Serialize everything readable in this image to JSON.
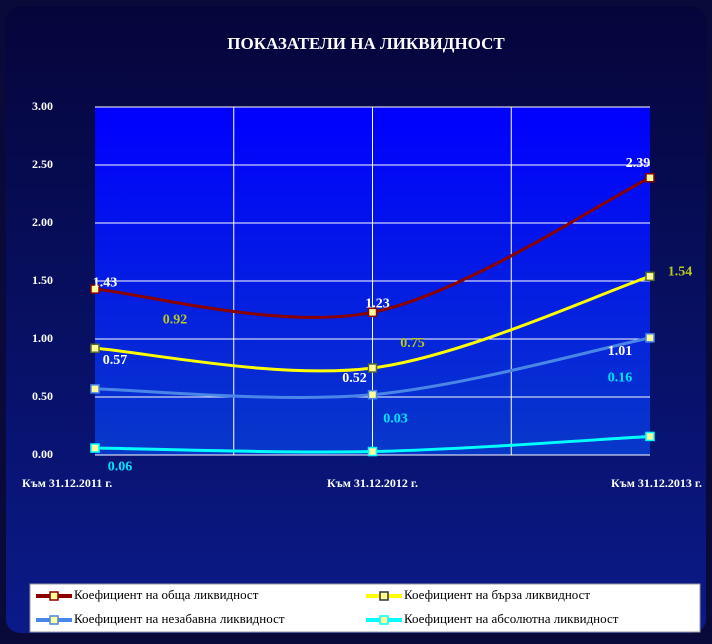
{
  "chart_data": {
    "type": "line",
    "title": "ПОКАЗАТЕЛИ НА ЛИКВИДНОСТ",
    "categories": [
      "Към 31.12.2011 г.",
      "Към 31.12.2012 г.",
      "Към 31.12.2013 г."
    ],
    "series": [
      {
        "name": "Коефициент на обща ликвидност",
        "color": "#8b0000",
        "label_color": "#ffffff",
        "values": [
          1.43,
          1.23,
          2.39
        ]
      },
      {
        "name": "Коефициент на бърза ликвидност",
        "color": "#ffff00",
        "label_color": "#b8c820",
        "values": [
          0.92,
          0.75,
          1.54
        ]
      },
      {
        "name": "Коефициент на незабавна ликвидност",
        "color": "#4a86e8",
        "label_color": "#ffffff",
        "values": [
          0.57,
          0.52,
          1.01
        ]
      },
      {
        "name": "Коефициент на абсолютна ликвидност",
        "color": "#00ffff",
        "label_color": "#00e5ff",
        "values": [
          0.06,
          0.03,
          0.16
        ]
      }
    ],
    "ylim": [
      0,
      3
    ],
    "yticks": [
      {
        "value": 0,
        "label": "0.00"
      },
      {
        "value": 0.5,
        "label": "0.50"
      },
      {
        "value": 1,
        "label": "1.00"
      },
      {
        "value": 1.5,
        "label": "1.50"
      },
      {
        "value": 2,
        "label": "2.00"
      },
      {
        "value": 2.5,
        "label": "2.50"
      },
      {
        "value": 3,
        "label": "3.00"
      }
    ],
    "grid": true,
    "legend": "bottom"
  }
}
